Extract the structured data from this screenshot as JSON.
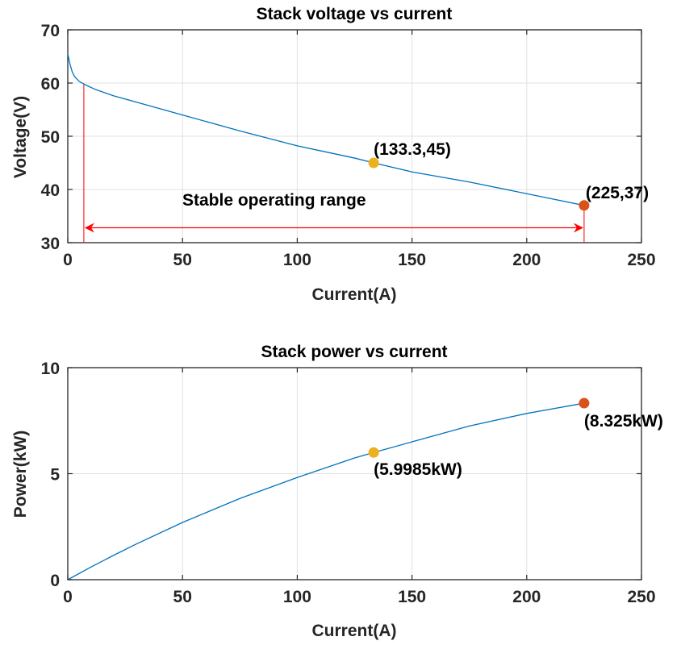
{
  "chart_data": [
    {
      "type": "line",
      "title": "Stack voltage vs current",
      "xlabel": "Current(A)",
      "ylabel": "Voltage(V)",
      "xlim": [
        0,
        250
      ],
      "ylim": [
        30,
        70
      ],
      "xticks": [
        0,
        50,
        100,
        150,
        200,
        250
      ],
      "yticks": [
        30,
        40,
        50,
        60,
        70
      ],
      "grid": true,
      "line_color": "#0072BD",
      "series": [
        {
          "x": [
            0,
            1,
            2,
            3,
            5,
            8,
            12,
            20,
            30,
            50,
            75,
            100,
            125,
            133.3,
            150,
            175,
            200,
            225
          ],
          "y": [
            65.5,
            63.5,
            62.0,
            61.2,
            60.3,
            59.6,
            58.8,
            57.6,
            56.4,
            54.0,
            51.0,
            48.2,
            45.9,
            45.0,
            43.3,
            41.4,
            39.2,
            37.0
          ]
        }
      ],
      "markers": [
        {
          "x": 133.3,
          "y": 45,
          "label": "(133.3,45)",
          "color": "#EDB120"
        },
        {
          "x": 225,
          "y": 37,
          "label": "(225,37)",
          "color": "#D95319"
        }
      ],
      "range_annotation": {
        "label": "Stable operating range",
        "x_start": 7,
        "x_end": 225,
        "y_arrow": 32.8,
        "color": "#FF0000"
      }
    },
    {
      "type": "line",
      "title": "Stack power vs current",
      "xlabel": "Current(A)",
      "ylabel": "Power(kW)",
      "xlim": [
        0,
        250
      ],
      "ylim": [
        0,
        10
      ],
      "xticks": [
        0,
        50,
        100,
        150,
        200,
        250
      ],
      "yticks": [
        0,
        5,
        10
      ],
      "grid": true,
      "line_color": "#0072BD",
      "series": [
        {
          "x": [
            0,
            10,
            20,
            30,
            50,
            75,
            100,
            125,
            133.3,
            150,
            175,
            200,
            225
          ],
          "y": [
            0,
            0.59,
            1.15,
            1.69,
            2.7,
            3.83,
            4.82,
            5.74,
            5.9985,
            6.5,
            7.25,
            7.84,
            8.325
          ]
        }
      ],
      "markers": [
        {
          "x": 133.3,
          "y": 5.9985,
          "label": "(5.9985kW)",
          "color": "#EDB120"
        },
        {
          "x": 225,
          "y": 8.325,
          "label": "(8.325kW)",
          "color": "#D95319"
        }
      ]
    }
  ]
}
